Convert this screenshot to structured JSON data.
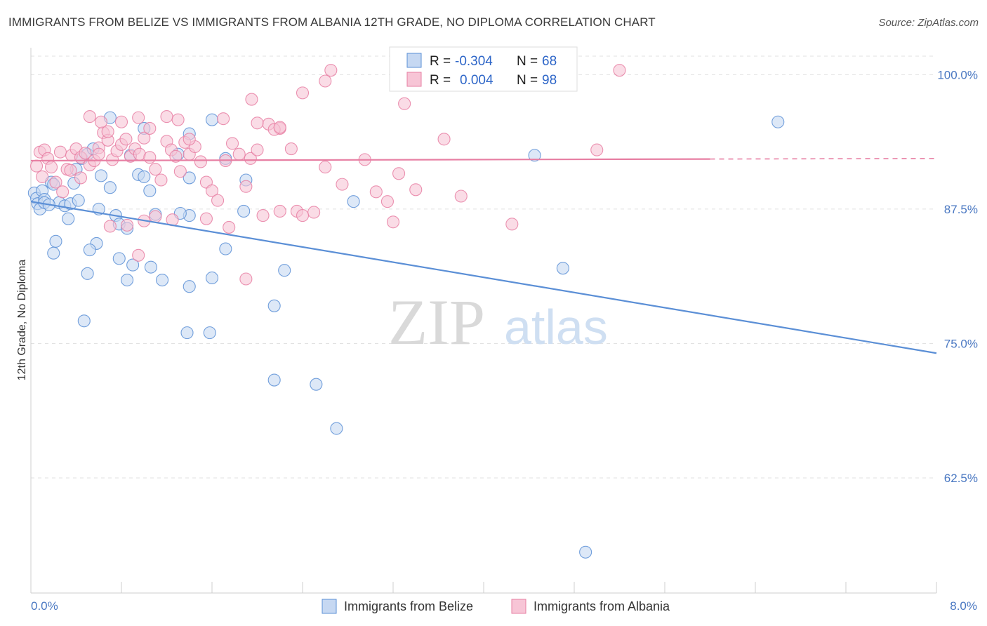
{
  "title": "IMMIGRANTS FROM BELIZE VS IMMIGRANTS FROM ALBANIA 12TH GRADE, NO DIPLOMA CORRELATION CHART",
  "source": "Source: ZipAtlas.com",
  "watermark": {
    "zip": "ZIP",
    "atlas": "atlas"
  },
  "chart_data": {
    "type": "scatter",
    "ylabel": "12th Grade, No Diploma",
    "xlim": [
      0,
      8
    ],
    "ylim": [
      51.8,
      102.5
    ],
    "x_tick_labels": [
      "0.0%",
      "8.0%"
    ],
    "y_ticks": [
      62.5,
      75.0,
      87.5,
      100.0
    ],
    "y_tick_labels": [
      "62.5%",
      "75.0%",
      "87.5%",
      "100.0%"
    ],
    "grid": true,
    "legend_top": {
      "placement": "top-center",
      "rows": [
        {
          "r_label": "R =",
          "r_value": "-0.304",
          "n_label": "N =",
          "n_value": "68"
        },
        {
          "r_label": "R =",
          "r_value": "0.004",
          "n_label": "N =",
          "n_value": "98"
        }
      ]
    },
    "series": [
      {
        "name": "Immigrants from Belize",
        "color": "#5b8fd6",
        "fill": "#c6d8f2",
        "trend": {
          "x": [
            0.0,
            8.0
          ],
          "y": [
            88.2,
            74.1
          ],
          "dashed_from": null
        },
        "points": [
          [
            0.03,
            89.0
          ],
          [
            0.05,
            88.5
          ],
          [
            0.06,
            88.0
          ],
          [
            0.08,
            87.5
          ],
          [
            0.1,
            89.2
          ],
          [
            0.12,
            88.4
          ],
          [
            0.18,
            90.0
          ],
          [
            0.2,
            89.8
          ],
          [
            0.25,
            88.1
          ],
          [
            0.3,
            87.8
          ],
          [
            0.33,
            86.6
          ],
          [
            0.38,
            89.9
          ],
          [
            0.4,
            91.2
          ],
          [
            0.45,
            92.2
          ],
          [
            0.5,
            92.6
          ],
          [
            0.55,
            93.1
          ],
          [
            0.12,
            88.1
          ],
          [
            0.16,
            87.9
          ],
          [
            0.35,
            88.0
          ],
          [
            0.42,
            88.3
          ],
          [
            0.6,
            87.5
          ],
          [
            0.62,
            90.6
          ],
          [
            0.7,
            89.5
          ],
          [
            0.75,
            86.9
          ],
          [
            0.78,
            86.1
          ],
          [
            0.85,
            85.7
          ],
          [
            0.88,
            92.5
          ],
          [
            0.95,
            90.7
          ],
          [
            1.0,
            90.5
          ],
          [
            1.05,
            89.2
          ],
          [
            1.1,
            87.0
          ],
          [
            0.22,
            84.5
          ],
          [
            0.2,
            83.4
          ],
          [
            0.58,
            84.3
          ],
          [
            0.52,
            83.7
          ],
          [
            0.78,
            82.9
          ],
          [
            0.9,
            82.3
          ],
          [
            1.06,
            82.1
          ],
          [
            0.5,
            81.5
          ],
          [
            0.85,
            80.9
          ],
          [
            1.16,
            80.9
          ],
          [
            0.47,
            77.1
          ],
          [
            1.4,
            80.3
          ],
          [
            1.6,
            81.1
          ],
          [
            1.72,
            83.8
          ],
          [
            2.24,
            81.8
          ],
          [
            1.38,
            76.0
          ],
          [
            1.58,
            76.0
          ],
          [
            2.15,
            78.5
          ],
          [
            2.15,
            71.6
          ],
          [
            2.52,
            71.2
          ],
          [
            2.7,
            67.1
          ],
          [
            0.7,
            96.0
          ],
          [
            1.0,
            95.0
          ],
          [
            1.4,
            94.5
          ],
          [
            1.6,
            95.8
          ],
          [
            1.3,
            92.6
          ],
          [
            1.4,
            90.4
          ],
          [
            1.9,
            90.2
          ],
          [
            1.88,
            87.3
          ],
          [
            1.4,
            86.9
          ],
          [
            2.85,
            88.2
          ],
          [
            4.45,
            92.5
          ],
          [
            4.7,
            82.0
          ],
          [
            6.6,
            95.6
          ],
          [
            4.9,
            55.6
          ],
          [
            1.32,
            87.1
          ],
          [
            1.72,
            92.2
          ]
        ]
      },
      {
        "name": "Immigrants from Albania",
        "color": "#e77fa3",
        "fill": "#f7c5d6",
        "trend": {
          "x": [
            0.0,
            8.0
          ],
          "y": [
            92.0,
            92.2
          ],
          "dashed_from": 6.0
        },
        "points": [
          [
            0.05,
            91.5
          ],
          [
            0.08,
            92.8
          ],
          [
            0.1,
            90.5
          ],
          [
            0.12,
            93.0
          ],
          [
            0.15,
            92.2
          ],
          [
            0.18,
            91.4
          ],
          [
            0.22,
            90.0
          ],
          [
            0.26,
            92.8
          ],
          [
            0.28,
            89.1
          ],
          [
            0.32,
            91.2
          ],
          [
            0.36,
            92.5
          ],
          [
            0.4,
            93.1
          ],
          [
            0.44,
            92.3
          ],
          [
            0.48,
            92.7
          ],
          [
            0.52,
            91.6
          ],
          [
            0.56,
            92.0
          ],
          [
            0.6,
            93.2
          ],
          [
            0.64,
            94.6
          ],
          [
            0.68,
            93.9
          ],
          [
            0.72,
            92.1
          ],
          [
            0.76,
            92.9
          ],
          [
            0.8,
            93.5
          ],
          [
            0.84,
            94.0
          ],
          [
            0.88,
            92.4
          ],
          [
            0.92,
            93.1
          ],
          [
            0.96,
            92.6
          ],
          [
            1.0,
            94.1
          ],
          [
            1.05,
            92.3
          ],
          [
            1.1,
            91.2
          ],
          [
            1.15,
            90.2
          ],
          [
            1.2,
            93.8
          ],
          [
            1.24,
            93.0
          ],
          [
            1.28,
            92.4
          ],
          [
            1.32,
            91.0
          ],
          [
            1.36,
            93.7
          ],
          [
            1.4,
            92.6
          ],
          [
            1.45,
            93.3
          ],
          [
            1.5,
            91.9
          ],
          [
            1.55,
            90.0
          ],
          [
            1.6,
            89.2
          ],
          [
            1.65,
            88.3
          ],
          [
            1.72,
            92.0
          ],
          [
            1.78,
            93.6
          ],
          [
            1.84,
            92.6
          ],
          [
            1.9,
            89.6
          ],
          [
            1.94,
            92.2
          ],
          [
            2.0,
            93.0
          ],
          [
            2.1,
            95.4
          ],
          [
            2.2,
            95.0
          ],
          [
            2.3,
            93.1
          ],
          [
            2.35,
            87.3
          ],
          [
            2.5,
            87.2
          ],
          [
            2.6,
            91.4
          ],
          [
            2.75,
            89.8
          ],
          [
            2.95,
            92.1
          ],
          [
            3.05,
            89.1
          ],
          [
            3.15,
            88.2
          ],
          [
            3.25,
            90.8
          ],
          [
            3.3,
            97.3
          ],
          [
            3.4,
            89.3
          ],
          [
            3.2,
            86.3
          ],
          [
            0.52,
            96.1
          ],
          [
            0.62,
            95.6
          ],
          [
            0.68,
            94.7
          ],
          [
            0.8,
            95.6
          ],
          [
            0.95,
            96.0
          ],
          [
            1.05,
            95.0
          ],
          [
            1.2,
            96.1
          ],
          [
            1.3,
            95.8
          ],
          [
            1.4,
            94.0
          ],
          [
            1.7,
            95.9
          ],
          [
            2.0,
            95.5
          ],
          [
            2.15,
            94.9
          ],
          [
            1.95,
            97.7
          ],
          [
            2.4,
            98.3
          ],
          [
            2.6,
            99.4
          ],
          [
            2.65,
            100.4
          ],
          [
            3.65,
            94.0
          ],
          [
            3.8,
            88.7
          ],
          [
            4.25,
            86.1
          ],
          [
            5.0,
            93.0
          ],
          [
            5.2,
            100.4
          ],
          [
            0.7,
            85.9
          ],
          [
            0.85,
            86.0
          ],
          [
            1.0,
            86.4
          ],
          [
            1.1,
            86.8
          ],
          [
            1.25,
            86.5
          ],
          [
            1.55,
            86.6
          ],
          [
            1.75,
            85.8
          ],
          [
            0.95,
            83.2
          ],
          [
            1.9,
            81.0
          ],
          [
            2.05,
            86.9
          ],
          [
            2.2,
            87.3
          ],
          [
            2.4,
            86.9
          ],
          [
            2.2,
            95.1
          ],
          [
            0.6,
            92.6
          ],
          [
            0.44,
            90.4
          ],
          [
            0.35,
            91.1
          ]
        ]
      }
    ]
  },
  "legend_bottom": {
    "placement": "bottom-center",
    "items": [
      "Immigrants from Belize",
      "Immigrants from Albania"
    ]
  }
}
